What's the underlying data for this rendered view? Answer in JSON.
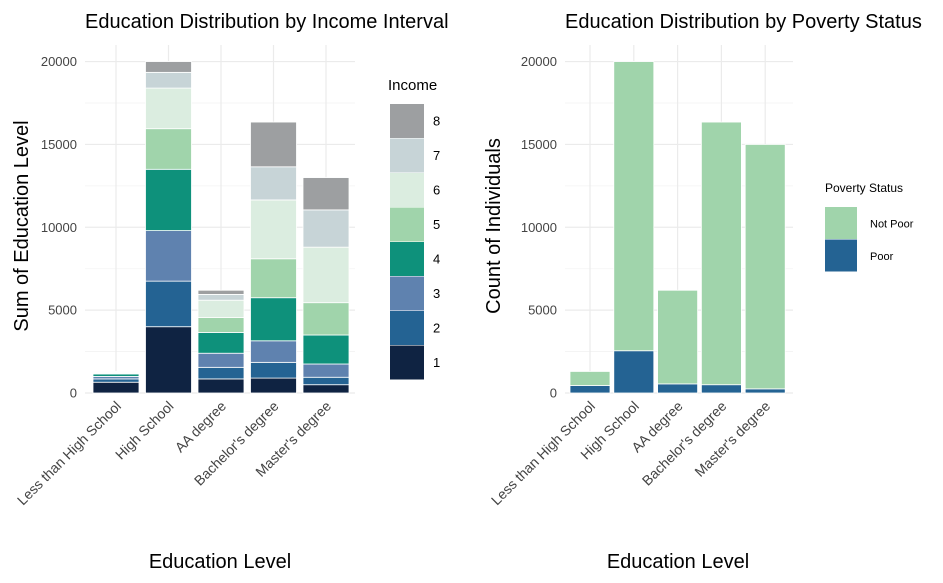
{
  "chart_data": [
    {
      "type": "bar",
      "stacked": true,
      "title": "Education Distribution by Income Interval",
      "xlabel": "Education Level",
      "ylabel": "Sum of Education Level",
      "ylim": [
        0,
        21000
      ],
      "yticks": [
        0,
        5000,
        10000,
        15000,
        20000
      ],
      "ytick_labels": [
        "0",
        "5000",
        "10000",
        "15000",
        "20000"
      ],
      "grid": true,
      "legend": {
        "title": "Income",
        "position": "right"
      },
      "categories": [
        "Less than High School",
        "High School",
        "AA degree",
        "Bachelor's degree",
        "Master's degree"
      ],
      "series": [
        {
          "name": "1",
          "color": "#0f2342",
          "values": [
            650,
            4000,
            850,
            900,
            500
          ]
        },
        {
          "name": "2",
          "color": "#246393",
          "values": [
            200,
            2750,
            700,
            950,
            450
          ]
        },
        {
          "name": "3",
          "color": "#5f82af",
          "values": [
            150,
            3050,
            850,
            1300,
            800
          ]
        },
        {
          "name": "4",
          "color": "#0e917b",
          "values": [
            150,
            3700,
            1250,
            2600,
            1750
          ]
        },
        {
          "name": "5",
          "color": "#a0d4ab",
          "values": [
            50,
            2450,
            900,
            2350,
            1950
          ]
        },
        {
          "name": "6",
          "color": "#dbede0",
          "values": [
            50,
            2450,
            1050,
            3550,
            3350
          ]
        },
        {
          "name": "7",
          "color": "#c7d4d7",
          "values": [
            30,
            950,
            350,
            2000,
            2250
          ]
        },
        {
          "name": "8",
          "color": "#9d9fa1",
          "values": [
            20,
            650,
            250,
            2700,
            1950
          ]
        }
      ]
    },
    {
      "type": "bar",
      "stacked": true,
      "title": "Education Distribution by Poverty Status",
      "xlabel": "Education Level",
      "ylabel": "Count of Individuals",
      "ylim": [
        0,
        21000
      ],
      "yticks": [
        0,
        5000,
        10000,
        15000,
        20000
      ],
      "ytick_labels": [
        "0",
        "5000",
        "10000",
        "15000",
        "20000"
      ],
      "grid": true,
      "legend": {
        "title": "Poverty Status",
        "position": "right"
      },
      "categories": [
        "Less than High School",
        "High School",
        "AA degree",
        "Bachelor's degree",
        "Master's degree"
      ],
      "series": [
        {
          "name": "Poor",
          "color": "#246393",
          "values": [
            450,
            2550,
            550,
            500,
            250
          ]
        },
        {
          "name": "Not Poor",
          "color": "#a0d4ab",
          "values": [
            850,
            17450,
            5650,
            15850,
            14750
          ]
        }
      ]
    }
  ]
}
